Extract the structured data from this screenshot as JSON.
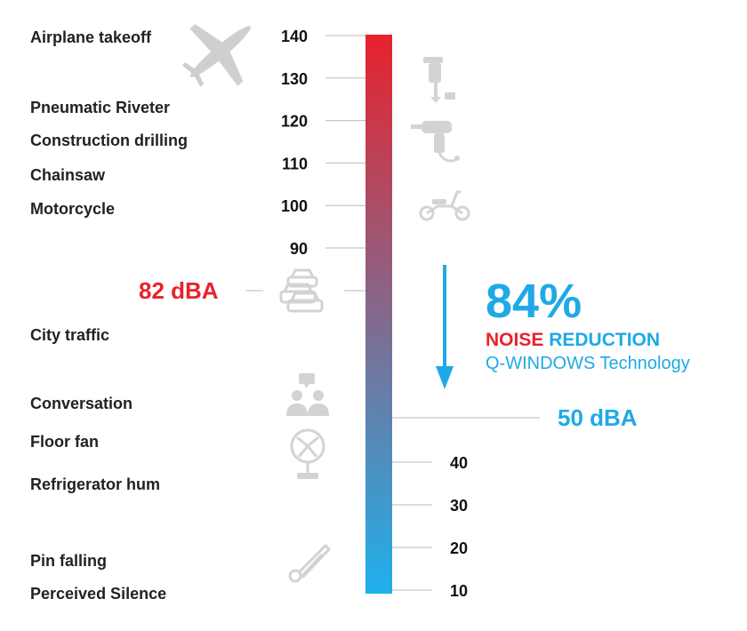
{
  "chart_data": {
    "type": "bar",
    "title": "",
    "scale_unit": "dBA",
    "scale_top": 140,
    "scale_bottom": 10,
    "upper_ticks": [
      140,
      130,
      120,
      110,
      100,
      90
    ],
    "lower_ticks": [
      40,
      30,
      20,
      10
    ],
    "gradient": {
      "top_color": "#e8222c",
      "bottom_color": "#1fb0ec"
    },
    "sources": [
      {
        "label": "Airplane takeoff",
        "icon": "airplane-icon"
      },
      {
        "label": "Pneumatic Riveter",
        "icon": "jackhammer-icon"
      },
      {
        "label": "Construction drilling",
        "icon": "drill-icon"
      },
      {
        "label": "Chainsaw",
        "icon": ""
      },
      {
        "label": "Motorcycle",
        "icon": "scooter-icon"
      },
      {
        "label": "City traffic",
        "icon": "traffic-cars-icon"
      },
      {
        "label": "Conversation",
        "icon": "conversation-icon"
      },
      {
        "label": "Floor fan",
        "icon": "fan-icon"
      },
      {
        "label": "Refrigerator hum",
        "icon": ""
      },
      {
        "label": "Pin falling",
        "icon": "safety-pin-icon"
      },
      {
        "label": "Perceived Silence",
        "icon": ""
      }
    ],
    "markers": [
      {
        "label": "82 dBA",
        "value": 82,
        "color": "#e8222c"
      },
      {
        "label": "50 dBA",
        "value": 50,
        "color": "#1fa9e6"
      }
    ],
    "reduction": {
      "percent": "84%",
      "word_noise": "NOISE",
      "word_reduction": "REDUCTION",
      "technology": "Q-WINDOWS Technology",
      "colors": {
        "noise": "#e8222c",
        "blue": "#1fa9e6",
        "arrow": "#1fa9e6"
      }
    }
  }
}
